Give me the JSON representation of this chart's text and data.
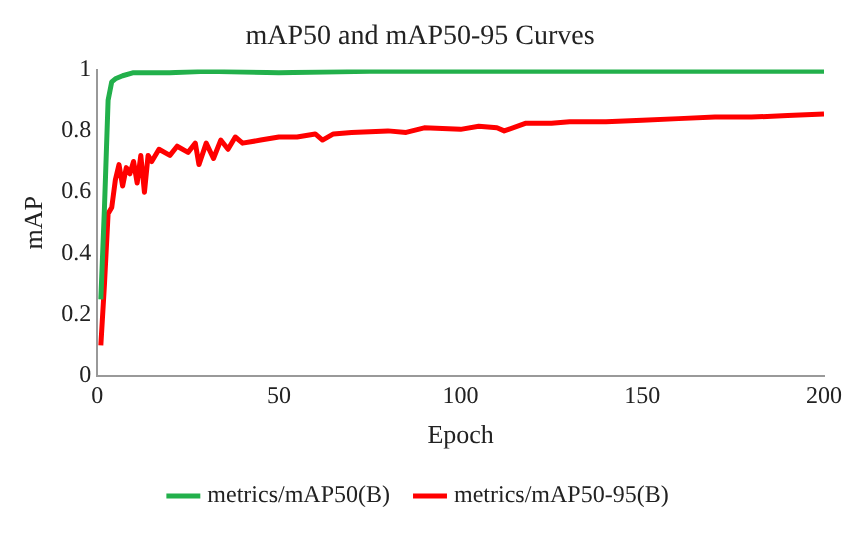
{
  "chart_data": {
    "type": "line",
    "title": "mAP50 and mAP50-95 Curves",
    "xlabel": "Epoch",
    "ylabel": "mAP",
    "xlim": [
      0,
      200
    ],
    "xticks": [
      0,
      50,
      100,
      150,
      200
    ],
    "ylim": [
      0,
      1
    ],
    "yticks": [
      0,
      0.2,
      0.4,
      0.6,
      0.8,
      1
    ],
    "grid": false,
    "legend": "bottom",
    "marker": "none",
    "line_style": "solid",
    "series": [
      {
        "name": "metrics/mAP50(B)",
        "color": "#22b04b",
        "x": [
          1,
          2,
          3,
          4,
          5,
          7,
          10,
          20,
          30,
          50,
          75,
          100,
          125,
          150,
          175,
          200
        ],
        "values": [
          0.25,
          0.55,
          0.9,
          0.96,
          0.97,
          0.98,
          0.99,
          0.99,
          0.995,
          0.99,
          0.995,
          0.995,
          0.995,
          0.995,
          0.995,
          0.995
        ]
      },
      {
        "name": "metrics/mAP50-95(B)",
        "color": "#ff0000",
        "x": [
          1,
          2,
          3,
          4,
          5,
          6,
          7,
          8,
          9,
          10,
          11,
          12,
          13,
          14,
          15,
          17,
          20,
          22,
          25,
          27,
          28,
          30,
          32,
          34,
          36,
          38,
          40,
          45,
          50,
          55,
          60,
          62,
          65,
          70,
          80,
          85,
          90,
          100,
          105,
          110,
          112,
          118,
          125,
          130,
          140,
          150,
          160,
          170,
          180,
          190,
          200
        ],
        "values": [
          0.1,
          0.3,
          0.53,
          0.55,
          0.64,
          0.69,
          0.62,
          0.68,
          0.66,
          0.7,
          0.63,
          0.72,
          0.6,
          0.72,
          0.7,
          0.74,
          0.72,
          0.75,
          0.73,
          0.76,
          0.69,
          0.76,
          0.71,
          0.77,
          0.74,
          0.78,
          0.76,
          0.77,
          0.78,
          0.78,
          0.79,
          0.77,
          0.79,
          0.795,
          0.8,
          0.795,
          0.81,
          0.805,
          0.815,
          0.81,
          0.8,
          0.825,
          0.825,
          0.83,
          0.83,
          0.835,
          0.84,
          0.845,
          0.845,
          0.85,
          0.855
        ]
      }
    ]
  }
}
